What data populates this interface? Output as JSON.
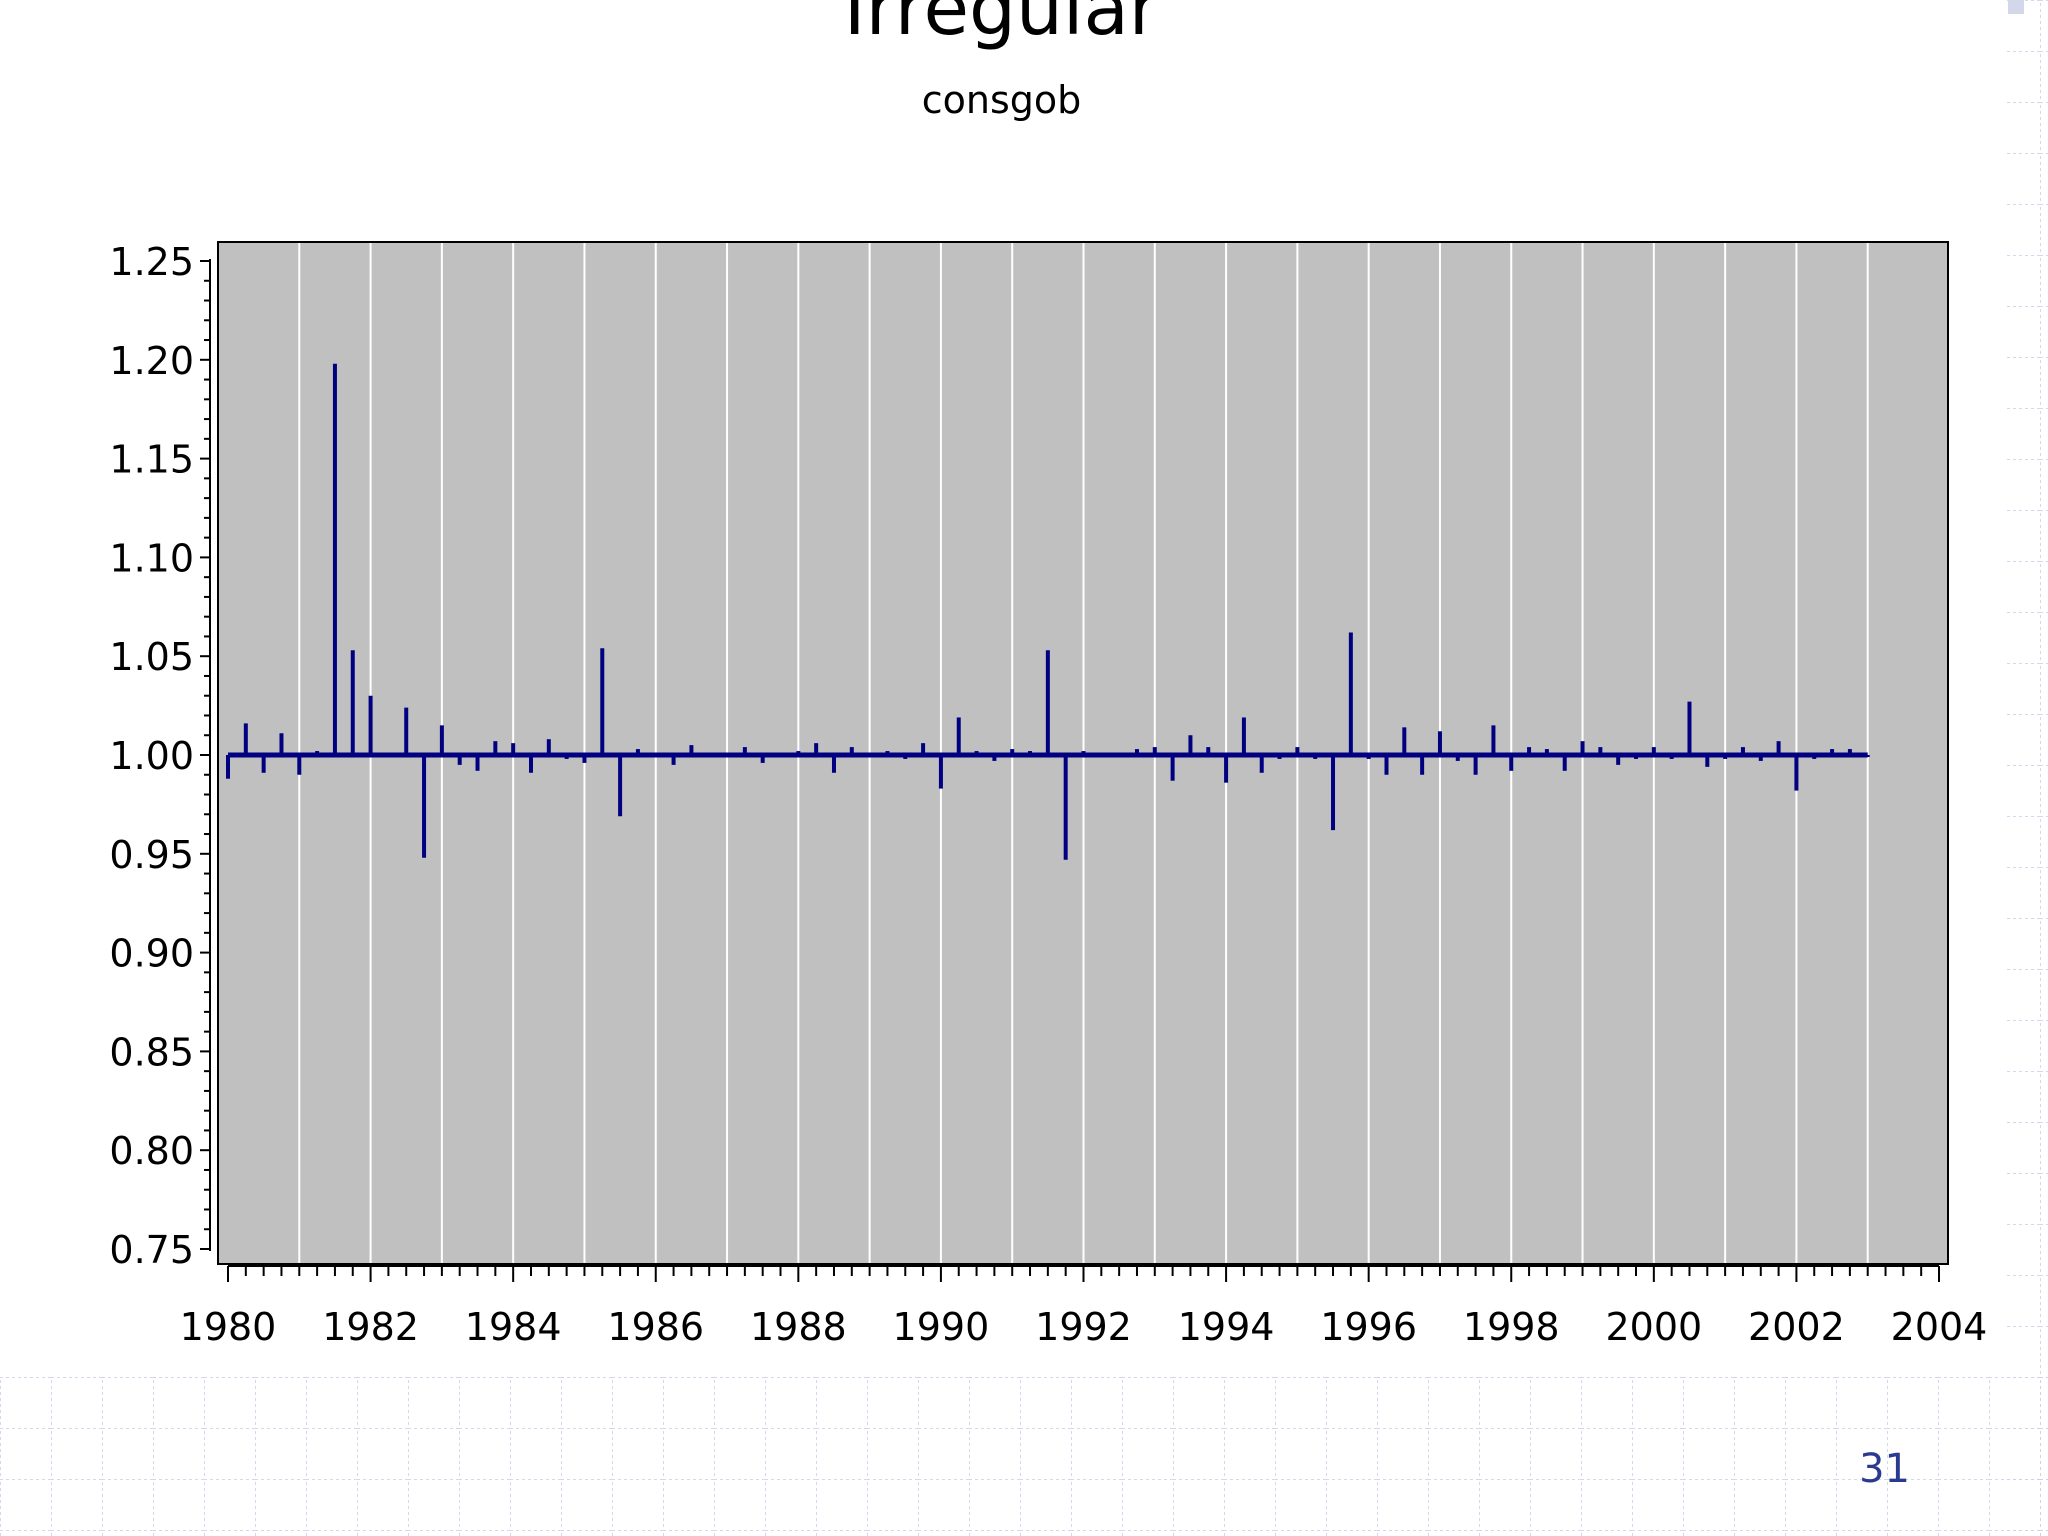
{
  "slide": {
    "title": "Irregular",
    "subtitle": "consgob",
    "page_number": "31",
    "colors": {
      "plot_background": "#c0c0c0",
      "series": "#000080",
      "grid": "#ffffff",
      "background_grid": "#c5cbe6",
      "page_number": "#2b3a8f"
    }
  },
  "chart_data": {
    "type": "bar",
    "title": "Irregular",
    "subtitle": "consgob",
    "xlabel": "",
    "ylabel": "",
    "baseline": 1.0,
    "xlim": [
      1980,
      2004
    ],
    "ylim": [
      0.75,
      1.25
    ],
    "x_ticks": [
      "1980",
      "1982",
      "1984",
      "1986",
      "1988",
      "1990",
      "1992",
      "1994",
      "1996",
      "1998",
      "2000",
      "2002",
      "2004"
    ],
    "y_ticks": [
      "0.75",
      "0.80",
      "0.85",
      "0.90",
      "0.95",
      "1.00",
      "1.05",
      "1.10",
      "1.15",
      "1.20",
      "1.25"
    ],
    "grid": "vertical",
    "legend": "none",
    "series": [
      {
        "x": [
          1980.0,
          1980.25,
          1980.5,
          1980.75,
          1981.0,
          1981.25,
          1981.5,
          1981.75,
          1982.0,
          1982.5,
          1982.75,
          1983.0,
          1983.25,
          1983.5,
          1983.75,
          1984.0,
          1984.25,
          1984.5,
          1984.75,
          1985.0,
          1985.25,
          1985.5,
          1985.75,
          1986.25,
          1986.5,
          1987.25,
          1987.5,
          1988.0,
          1988.25,
          1988.5,
          1988.75,
          1989.25,
          1989.5,
          1989.75,
          1990.0,
          1990.25,
          1990.5,
          1990.75,
          1991.0,
          1991.25,
          1991.5,
          1991.75,
          1992.0,
          1992.75,
          1993.0,
          1993.25,
          1993.5,
          1993.75,
          1994.0,
          1994.25,
          1994.5,
          1994.75,
          1995.0,
          1995.25,
          1995.5,
          1995.75,
          1996.0,
          1996.25,
          1996.5,
          1996.75,
          1997.0,
          1997.25,
          1997.5,
          1997.75,
          1998.0,
          1998.25,
          1998.5,
          1998.75,
          1999.0,
          1999.25,
          1999.5,
          1999.75,
          2000.0,
          2000.25,
          2000.5,
          2000.75,
          2001.0,
          2001.25,
          2001.5,
          2001.75,
          2002.0,
          2002.25,
          2002.5,
          2002.75,
          2003.0
        ],
        "values": [
          0.988,
          1.016,
          0.991,
          1.011,
          0.99,
          1.002,
          1.198,
          1.053,
          1.03,
          1.024,
          0.948,
          1.015,
          0.995,
          0.992,
          1.007,
          1.006,
          0.991,
          1.008,
          0.998,
          0.996,
          1.054,
          0.969,
          1.003,
          0.995,
          1.005,
          1.004,
          0.996,
          1.002,
          1.006,
          0.991,
          1.004,
          1.002,
          0.998,
          1.006,
          0.983,
          1.019,
          1.002,
          0.997,
          1.003,
          1.002,
          1.053,
          0.947,
          1.002,
          1.003,
          1.004,
          0.987,
          1.01,
          1.004,
          0.986,
          1.019,
          0.991,
          0.998,
          1.004,
          0.998,
          0.962,
          1.062,
          0.998,
          0.99,
          1.014,
          0.99,
          1.012,
          0.997,
          0.99,
          1.015,
          0.992,
          1.004,
          1.003,
          0.992,
          1.007,
          1.004,
          0.995,
          0.998,
          1.004,
          0.998,
          1.027,
          0.994,
          0.998,
          1.004,
          0.997,
          1.007,
          0.982,
          0.998,
          1.003,
          1.003,
          0.999
        ]
      }
    ]
  }
}
